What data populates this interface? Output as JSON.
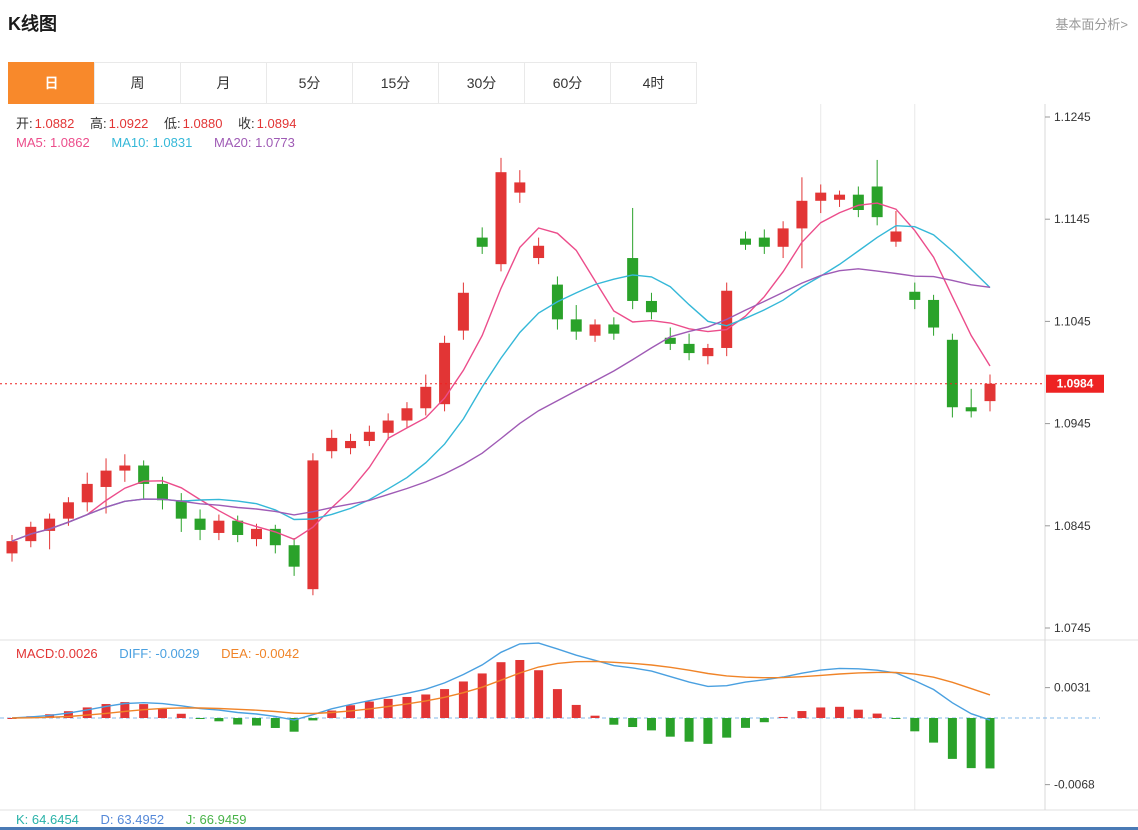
{
  "header": {
    "title": "K线图",
    "link": "基本面分析>"
  },
  "tabs": [
    {
      "label": "日",
      "active": true
    },
    {
      "label": "周",
      "active": false
    },
    {
      "label": "月",
      "active": false
    },
    {
      "label": "5分",
      "active": false
    },
    {
      "label": "15分",
      "active": false
    },
    {
      "label": "30分",
      "active": false
    },
    {
      "label": "60分",
      "active": false
    },
    {
      "label": "4时",
      "active": false
    }
  ],
  "legends": {
    "ohlc": {
      "open_label": "开:",
      "open": "1.0882",
      "high_label": "高:",
      "high": "1.0922",
      "low_label": "低:",
      "low": "1.0880",
      "close_label": "收:",
      "close": "1.0894"
    },
    "ma": {
      "ma5_label": "MA5: ",
      "ma5": "1.0862",
      "ma10_label": "MA10: ",
      "ma10": "1.0831",
      "ma20_label": "MA20: ",
      "ma20": "1.0773"
    },
    "macd": {
      "macd_label": "MACD:",
      "macd": "0.0026",
      "diff_label": "DIFF: ",
      "diff": "-0.0029",
      "dea_label": "DEA: ",
      "dea": "-0.0042"
    },
    "kdj": {
      "k_label": "K: ",
      "k": "64.6454",
      "d_label": "D: ",
      "d": "63.4952",
      "j_label": "J: ",
      "j": "66.9459"
    }
  },
  "price_marker": {
    "text": "1.0984",
    "value": 1.0984
  },
  "axis": {
    "main_ticks": [
      "1.1245",
      "1.1145",
      "1.1045",
      "1.0945",
      "1.0845",
      "1.0745"
    ],
    "macd_ticks": [
      "0.0031",
      "-0.0068"
    ]
  },
  "colors": {
    "up": "#e23535",
    "down": "#2aa22a",
    "legend_red": "#e23535",
    "ma5": "#ec4d8b",
    "ma10": "#35b8d8",
    "ma20": "#9f5bb5",
    "diff": "#4aa0e0",
    "dea": "#f08428",
    "macd_value": "#e23535",
    "k": "#28b2a8",
    "d": "#5488d8",
    "j": "#48b348",
    "tab_active": "#f8892b",
    "tab_active_text": "#ffffff",
    "price_tag": "#ee2222",
    "zero_line": "#85b8e8",
    "bottom_bar": "#4a7ab5",
    "axis_text": "#333333",
    "grid": "#e8e8e8"
  },
  "chart_data": {
    "type": "candlestick",
    "title": "K线图",
    "period_selected": "日",
    "color_convention": "red-up-green-down",
    "y_axis_main": {
      "range": [
        1.0745,
        1.1245
      ],
      "ticks": [
        1.1245,
        1.1145,
        1.1045,
        1.0945,
        1.0845,
        1.0745
      ]
    },
    "last_price": 1.0984,
    "candles_ohlc": [
      [
        1.0818,
        1.0836,
        1.081,
        1.083
      ],
      [
        1.083,
        1.0849,
        1.0824,
        1.0844
      ],
      [
        1.084,
        1.0857,
        1.0822,
        1.0852
      ],
      [
        1.0852,
        1.0873,
        1.0845,
        1.0868
      ],
      [
        1.0868,
        1.0897,
        1.0859,
        1.0886
      ],
      [
        1.0883,
        1.0911,
        1.0857,
        1.0899
      ],
      [
        1.0899,
        1.0915,
        1.0888,
        1.0904
      ],
      [
        1.0904,
        1.0909,
        1.0871,
        1.0886
      ],
      [
        1.0886,
        1.0893,
        1.0861,
        1.087
      ],
      [
        1.087,
        1.0877,
        1.0839,
        1.0852
      ],
      [
        1.0852,
        1.0861,
        1.0831,
        1.0841
      ],
      [
        1.0838,
        1.0856,
        1.0831,
        1.085
      ],
      [
        1.085,
        1.0855,
        1.0829,
        1.0836
      ],
      [
        1.0832,
        1.0847,
        1.0825,
        1.0842
      ],
      [
        1.0842,
        1.0846,
        1.0818,
        1.0826
      ],
      [
        1.0826,
        1.0833,
        1.0796,
        1.0805
      ],
      [
        1.0783,
        1.0916,
        1.0777,
        1.0909
      ],
      [
        1.0918,
        1.0939,
        1.0911,
        1.0931
      ],
      [
        1.0921,
        1.0935,
        1.0915,
        1.0928
      ],
      [
        1.0928,
        1.0943,
        1.0923,
        1.0937
      ],
      [
        1.0936,
        1.0955,
        1.0929,
        1.0948
      ],
      [
        1.0948,
        1.0966,
        1.0941,
        1.096
      ],
      [
        1.096,
        1.0993,
        1.0953,
        1.0981
      ],
      [
        1.0964,
        1.1031,
        1.0957,
        1.1024
      ],
      [
        1.1036,
        1.1083,
        1.1027,
        1.1073
      ],
      [
        1.1127,
        1.1137,
        1.1111,
        1.1118
      ],
      [
        1.1101,
        1.1205,
        1.1094,
        1.1191
      ],
      [
        1.1171,
        1.1193,
        1.1161,
        1.1181
      ],
      [
        1.1107,
        1.1127,
        1.1101,
        1.1119
      ],
      [
        1.1081,
        1.1089,
        1.1037,
        1.1047
      ],
      [
        1.1047,
        1.1061,
        1.1027,
        1.1035
      ],
      [
        1.1031,
        1.1047,
        1.1025,
        1.1042
      ],
      [
        1.1042,
        1.1049,
        1.1027,
        1.1033
      ],
      [
        1.1107,
        1.1156,
        1.1057,
        1.1065
      ],
      [
        1.1065,
        1.1073,
        1.1047,
        1.1054
      ],
      [
        1.1029,
        1.1039,
        1.1017,
        1.1023
      ],
      [
        1.1023,
        1.1033,
        1.1007,
        1.1014
      ],
      [
        1.1011,
        1.1023,
        1.1003,
        1.1019
      ],
      [
        1.1019,
        1.1083,
        1.1011,
        1.1075
      ],
      [
        1.1126,
        1.1133,
        1.1115,
        1.112
      ],
      [
        1.1127,
        1.1135,
        1.1111,
        1.1118
      ],
      [
        1.1118,
        1.1143,
        1.1107,
        1.1136
      ],
      [
        1.1136,
        1.1186,
        1.1097,
        1.1163
      ],
      [
        1.1163,
        1.1179,
        1.1151,
        1.1171
      ],
      [
        1.1164,
        1.1173,
        1.1157,
        1.1169
      ],
      [
        1.1169,
        1.1177,
        1.1147,
        1.1154
      ],
      [
        1.1177,
        1.1203,
        1.1139,
        1.1147
      ],
      [
        1.1123,
        1.1153,
        1.1118,
        1.1133
      ],
      [
        1.1074,
        1.1083,
        1.1057,
        1.1066
      ],
      [
        1.1066,
        1.1071,
        1.1031,
        1.1039
      ],
      [
        1.1027,
        1.1033,
        1.0951,
        1.0961
      ],
      [
        1.0961,
        1.0979,
        1.0951,
        1.0957
      ],
      [
        1.0967,
        1.0993,
        1.0957,
        1.0984
      ]
    ],
    "overlays": [
      {
        "name": "MA5",
        "type": "sma",
        "period": 5,
        "color": "#ec4d8b",
        "readout": 1.0862
      },
      {
        "name": "MA10",
        "type": "sma",
        "period": 10,
        "color": "#35b8d8",
        "readout": 1.0831
      },
      {
        "name": "MA20",
        "type": "sma",
        "period": 20,
        "color": "#9f5bb5",
        "readout": 1.0773
      }
    ],
    "ohlc_readout": {
      "open": 1.0882,
      "high": 1.0922,
      "low": 1.088,
      "close": 1.0894
    },
    "secondary_indicator": {
      "type": "macd",
      "params": [
        12,
        26,
        9
      ],
      "bar_formula": "2*(DIFF-DEA)",
      "y_ticks": [
        0.0031,
        -0.0068
      ],
      "readout": {
        "macd": 0.0026,
        "diff": -0.0029,
        "dea": -0.0042
      }
    },
    "kdj_readout": {
      "k": 64.6454,
      "d": 63.4952,
      "j": 66.9459
    }
  }
}
